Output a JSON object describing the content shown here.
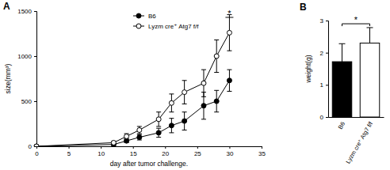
{
  "chart_data": [
    {
      "type": "line",
      "title": "A",
      "x_label": "day after tumor challenge.",
      "y_label": "size(mm³)",
      "x": [
        0,
        12,
        14,
        16,
        19,
        21,
        23,
        26,
        28,
        30
      ],
      "series": [
        {
          "name": "B6",
          "color": "#000000",
          "marker": "circle",
          "values": [
            0,
            20,
            60,
            100,
            150,
            230,
            280,
            450,
            500,
            730
          ],
          "errors": [
            0,
            10,
            20,
            30,
            50,
            80,
            100,
            150,
            120,
            120
          ]
        },
        {
          "name": "Lyzm cre⁺ Atg7 f/f",
          "color": "#000000",
          "marker": "circle-open",
          "values": [
            0,
            40,
            110,
            180,
            300,
            480,
            600,
            700,
            1000,
            1260
          ],
          "errors": [
            0,
            15,
            30,
            40,
            80,
            100,
            130,
            150,
            180,
            200
          ]
        }
      ],
      "xlim": [
        0,
        35
      ],
      "xticks": [
        0,
        5,
        10,
        15,
        20,
        25,
        30,
        35
      ],
      "ylim": [
        0,
        1500
      ],
      "yticks": [
        0,
        500,
        1000,
        1500
      ],
      "legend": "upper left",
      "annotations": [
        {
          "text": "*",
          "x": 30,
          "y": 1430
        }
      ]
    },
    {
      "type": "bar",
      "title": "B",
      "y_label": "weight(g)",
      "categories": [
        "B6",
        "Lyzm cre⁺ Atg7 f/f"
      ],
      "values": [
        1.72,
        2.3
      ],
      "errors": [
        0.56,
        0.48
      ],
      "colors": [
        "#000000",
        "#ffffff"
      ],
      "ylim": [
        0,
        3
      ],
      "yticks": [
        0,
        1,
        2,
        3
      ],
      "annotations": [
        {
          "text": "*",
          "y": 2.9
        }
      ]
    }
  ]
}
